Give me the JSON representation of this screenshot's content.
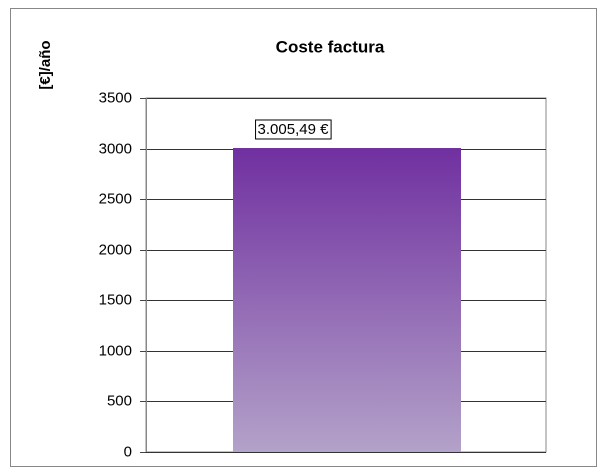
{
  "chart_data": {
    "type": "bar",
    "title": "Coste factura",
    "ylabel": "[€]/año",
    "categories": [
      null
    ],
    "values": [
      3005.49
    ],
    "value_labels": [
      "3.005,49 €"
    ],
    "color": "#7030a0",
    "ylim": [
      0,
      3500
    ],
    "yticks": [
      0,
      500,
      1000,
      1500,
      2000,
      2500,
      3000,
      3500
    ],
    "grid": true
  }
}
